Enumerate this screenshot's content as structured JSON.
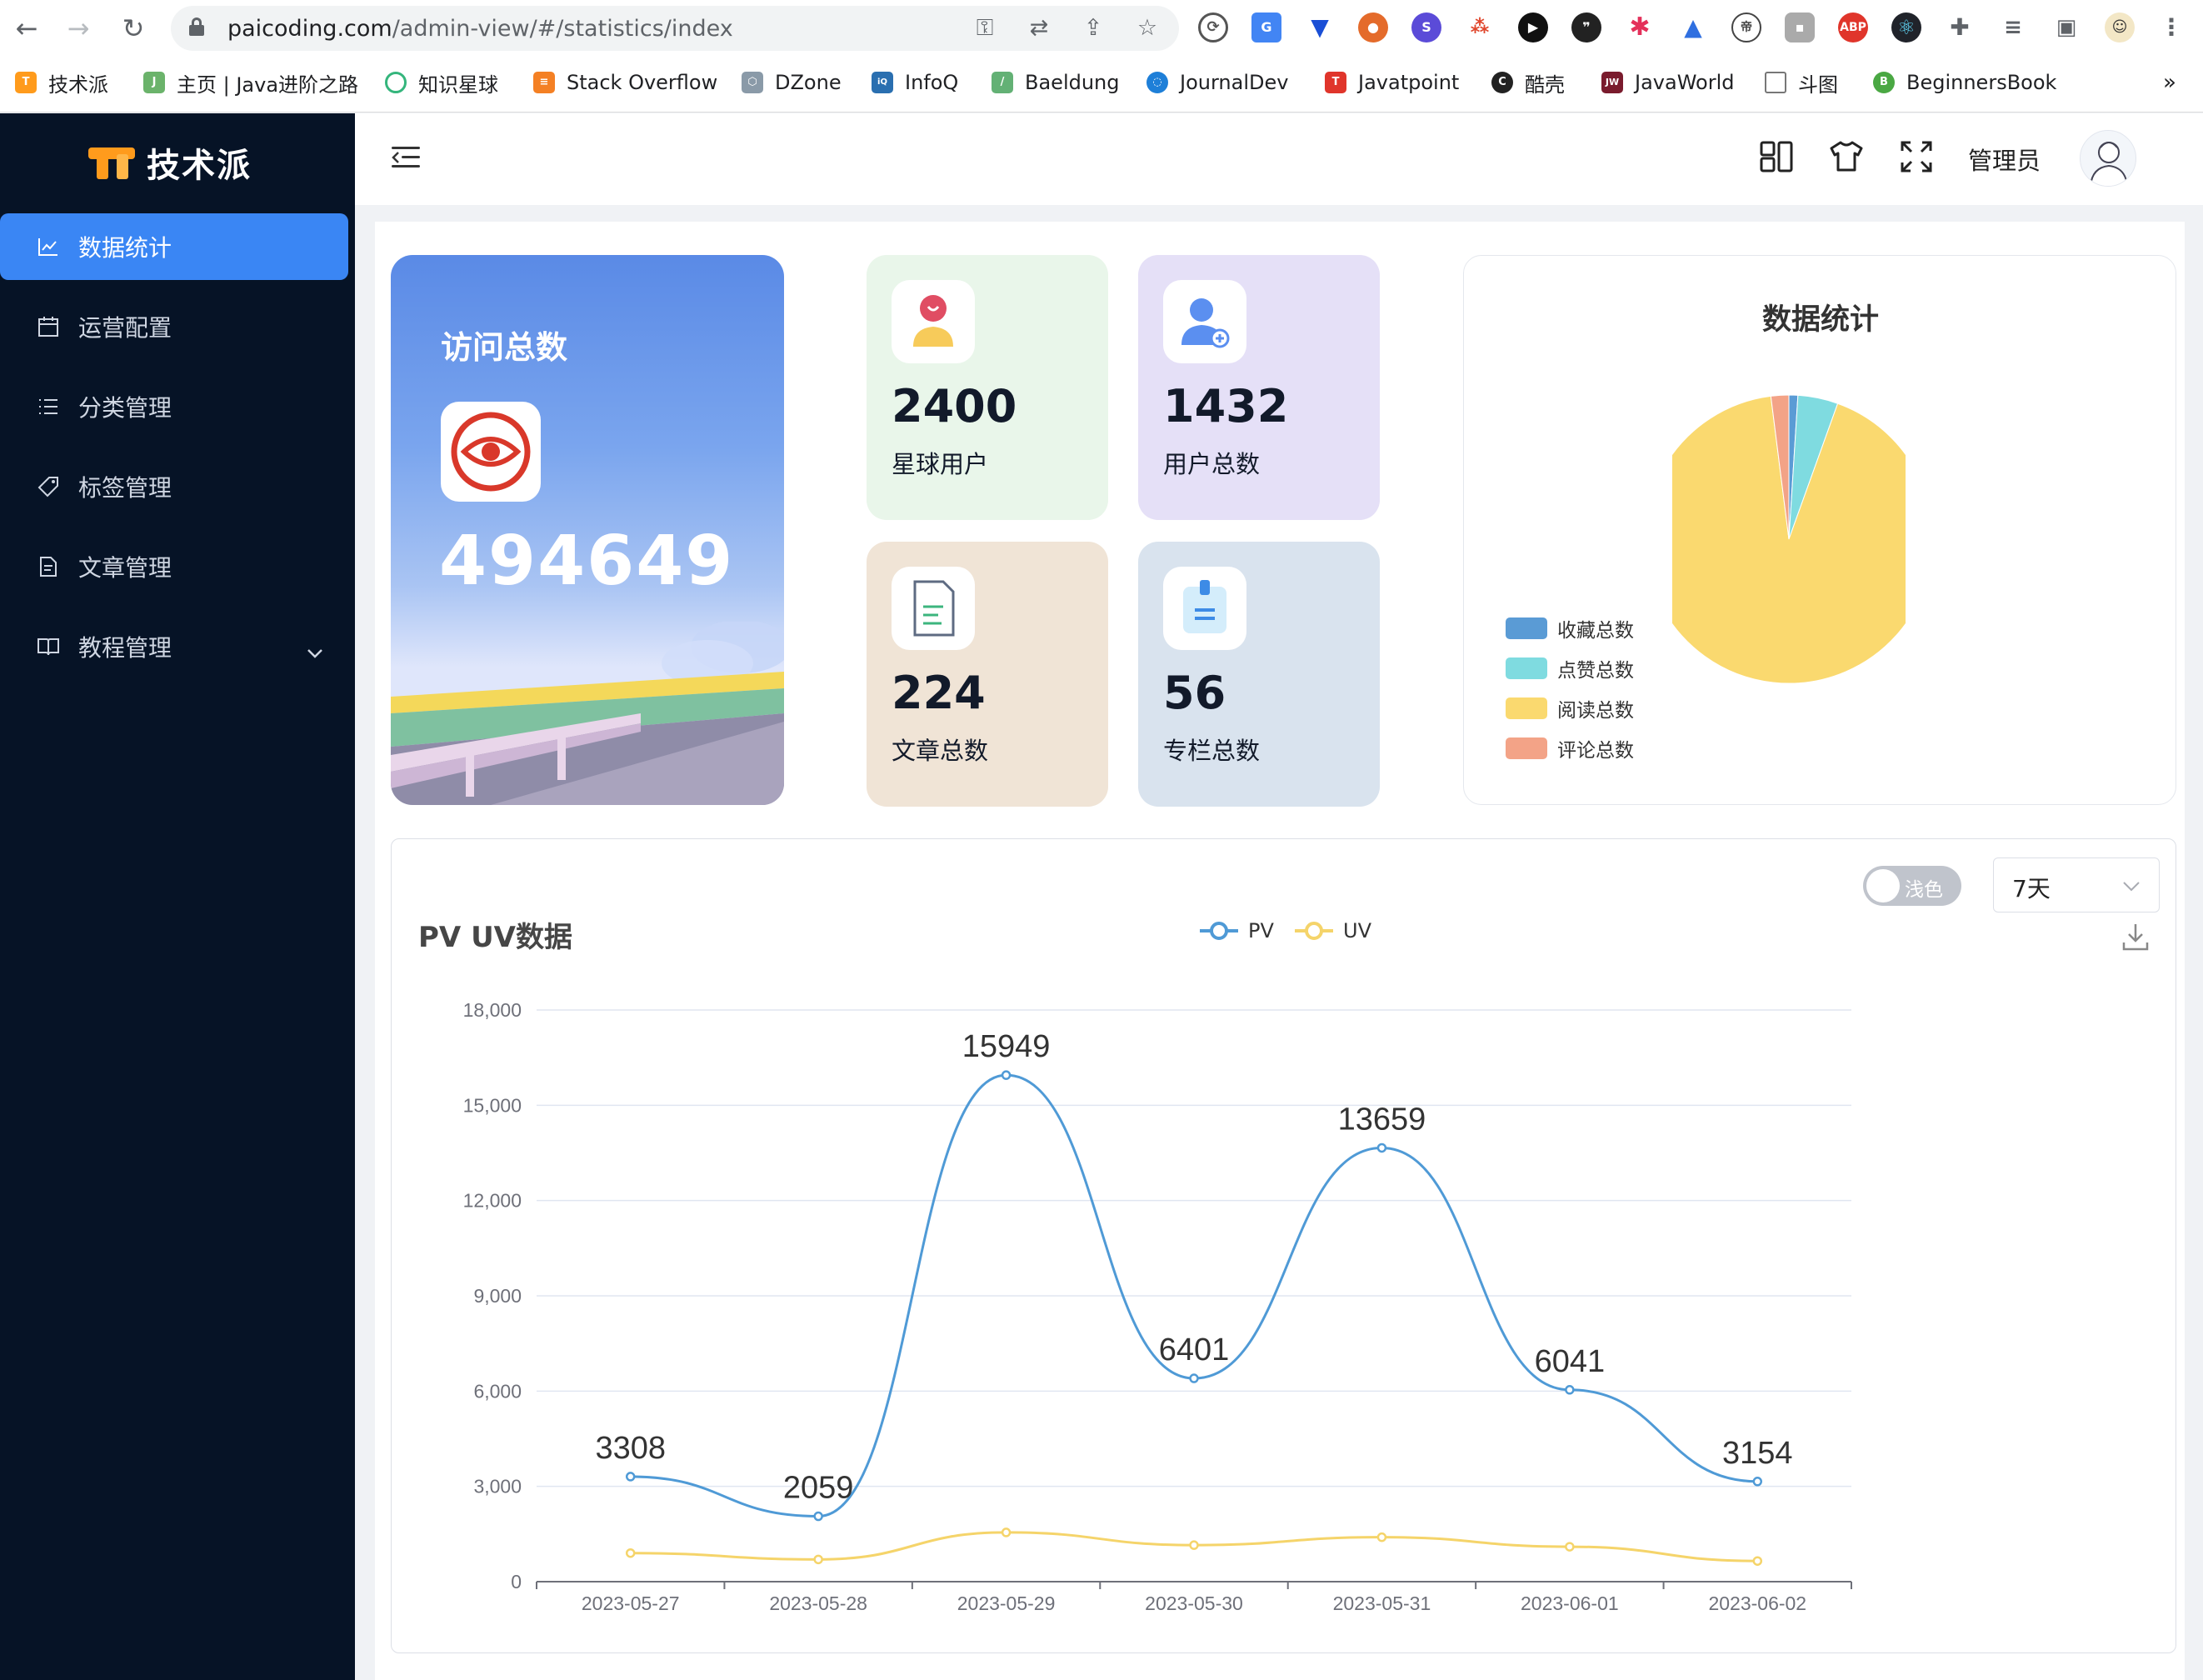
{
  "browser": {
    "url_host": "paicoding.com",
    "url_path": "/admin-view/#/statistics/index",
    "bookmarks": [
      "技术派",
      "主页 | Java进阶之路",
      "知识星球",
      "Stack Overflow",
      "DZone",
      "InfoQ",
      "Baeldung",
      "JournalDev",
      "Javatpoint",
      "酷壳",
      "JavaWorld",
      "斗图",
      "BeginnersBook"
    ],
    "more": "»",
    "ext_abp": "ABP"
  },
  "app": {
    "logo_text": "技术派",
    "admin_name": "管理员"
  },
  "sidebar": {
    "items": [
      {
        "label": "数据统计",
        "icon": "line-chart-icon"
      },
      {
        "label": "运营配置",
        "icon": "calendar-icon"
      },
      {
        "label": "分类管理",
        "icon": "list-icon"
      },
      {
        "label": "标签管理",
        "icon": "tag-icon"
      },
      {
        "label": "文章管理",
        "icon": "document-icon"
      },
      {
        "label": "教程管理",
        "icon": "book-icon"
      }
    ]
  },
  "visits": {
    "title": "访问总数",
    "value": "494649"
  },
  "stats": [
    {
      "value": "2400",
      "label": "星球用户",
      "bg": "#e9f6ea"
    },
    {
      "value": "1432",
      "label": "用户总数",
      "bg": "#e5e0f7"
    },
    {
      "value": "224",
      "label": "文章总数",
      "bg": "#f0e4d6"
    },
    {
      "value": "56",
      "label": "专栏总数",
      "bg": "#d9e3ee"
    }
  ],
  "pie": {
    "title": "数据统计",
    "legend": [
      {
        "label": "收藏总数",
        "color": "#5a9bd5"
      },
      {
        "label": "点赞总数",
        "color": "#7fdbe0"
      },
      {
        "label": "阅读总数",
        "color": "#fad96f"
      },
      {
        "label": "评论总数",
        "color": "#f3a387"
      }
    ]
  },
  "pv_uv": {
    "title": "PV UV数据",
    "toggle_label": "浅色",
    "range_value": "7天",
    "legend_pv": "PV",
    "legend_uv": "UV"
  },
  "chart_data": [
    {
      "type": "pie",
      "title": "数据统计",
      "labels": [
        "收藏总数",
        "点赞总数",
        "阅读总数",
        "评论总数"
      ],
      "values": [
        1.0,
        4.5,
        92.5,
        2.0
      ],
      "colors": [
        "#5a9bd5",
        "#7fdbe0",
        "#fad96f",
        "#f3a387"
      ]
    },
    {
      "type": "line",
      "title": "PV UV数据",
      "categories": [
        "2023-05-27",
        "2023-05-28",
        "2023-05-29",
        "2023-05-30",
        "2023-05-31",
        "2023-06-01",
        "2023-06-02"
      ],
      "ylim": [
        0,
        18000
      ],
      "yticks": [
        "0",
        "3,000",
        "6,000",
        "9,000",
        "12,000",
        "15,000",
        "18,000"
      ],
      "series": [
        {
          "name": "PV",
          "color": "#4f9ad6",
          "values": [
            3308,
            2059,
            15949,
            6401,
            13659,
            6041,
            3154
          ],
          "labels": [
            "3308",
            "2059",
            "15949",
            "6401",
            "13659",
            "6041",
            "3154"
          ]
        },
        {
          "name": "UV",
          "color": "#f5d46a",
          "values": [
            900,
            700,
            1550,
            1150,
            1400,
            1100,
            650
          ]
        }
      ],
      "legend": "top-center",
      "grid": true
    }
  ]
}
